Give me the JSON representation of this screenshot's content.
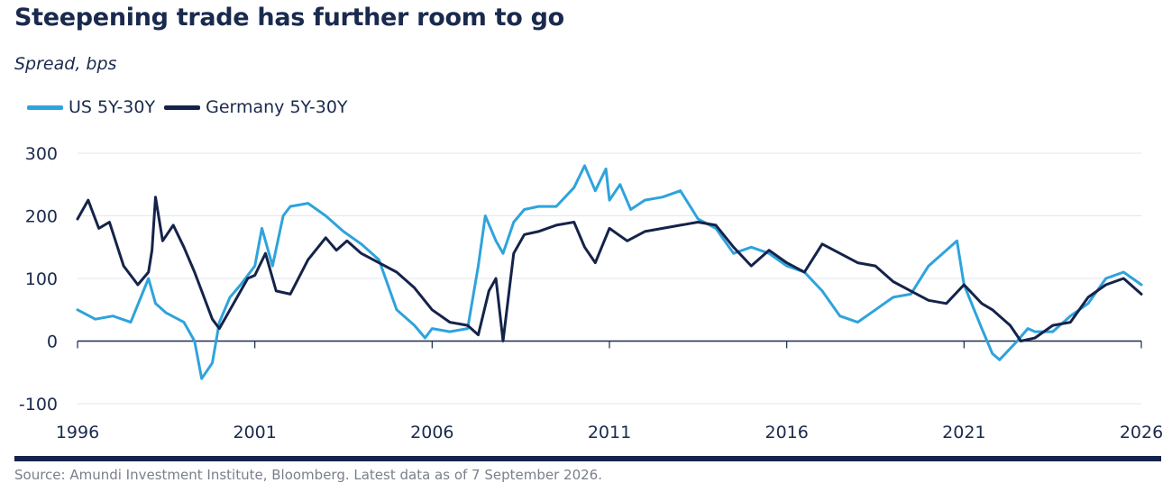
{
  "chart_data": {
    "type": "line",
    "title": "Steepening trade has further room to go",
    "subtitle": "Spread, bps",
    "xlabel": "",
    "ylabel": "",
    "xlim": [
      1996,
      2026
    ],
    "ylim": [
      -100,
      300
    ],
    "xticks": [
      1996,
      2001,
      2006,
      2011,
      2016,
      2021,
      2026
    ],
    "yticks": [
      -100,
      0,
      100,
      200,
      300
    ],
    "grid": "horizontal",
    "legend_position": "top-left",
    "series": [
      {
        "name": "US 5Y-30Y",
        "color": "#2ea3dc",
        "x": [
          1996.0,
          1996.5,
          1997.0,
          1997.5,
          1998.0,
          1998.2,
          1998.5,
          1999.0,
          1999.3,
          1999.5,
          1999.8,
          2000.0,
          2000.3,
          2000.6,
          2001.0,
          2001.2,
          2001.5,
          2001.8,
          2002.0,
          2002.5,
          2003.0,
          2003.5,
          2004.0,
          2004.5,
          2005.0,
          2005.5,
          2005.8,
          2006.0,
          2006.5,
          2007.0,
          2007.3,
          2007.5,
          2007.8,
          2008.0,
          2008.3,
          2008.6,
          2009.0,
          2009.5,
          2010.0,
          2010.3,
          2010.6,
          2010.9,
          2011.0,
          2011.3,
          2011.6,
          2012.0,
          2012.5,
          2013.0,
          2013.5,
          2014.0,
          2014.5,
          2015.0,
          2015.5,
          2016.0,
          2016.5,
          2017.0,
          2017.5,
          2018.0,
          2018.5,
          2019.0,
          2019.5,
          2020.0,
          2020.5,
          2020.8,
          2021.0,
          2021.5,
          2021.8,
          2022.0,
          2022.5,
          2022.8,
          2023.0,
          2023.5,
          2024.0,
          2024.5,
          2025.0,
          2025.5,
          2026.0
        ],
        "values": [
          50,
          35,
          40,
          30,
          100,
          60,
          45,
          30,
          0,
          -60,
          -35,
          30,
          70,
          90,
          120,
          180,
          120,
          200,
          215,
          220,
          200,
          175,
          155,
          130,
          50,
          25,
          5,
          20,
          15,
          20,
          120,
          200,
          160,
          140,
          190,
          210,
          215,
          215,
          245,
          280,
          240,
          275,
          225,
          250,
          210,
          225,
          230,
          240,
          195,
          180,
          140,
          150,
          140,
          120,
          110,
          80,
          40,
          30,
          50,
          70,
          75,
          120,
          145,
          160,
          90,
          20,
          -20,
          -30,
          0,
          20,
          15,
          15,
          40,
          60,
          100,
          110,
          90
        ]
      },
      {
        "name": "Germany 5Y-30Y",
        "color": "#15234a",
        "x": [
          1996.0,
          1996.3,
          1996.6,
          1996.9,
          1997.3,
          1997.7,
          1998.0,
          1998.1,
          1998.2,
          1998.4,
          1998.7,
          1999.0,
          1999.3,
          1999.5,
          1999.8,
          2000.0,
          2000.5,
          2000.8,
          2001.0,
          2001.3,
          2001.6,
          2002.0,
          2002.5,
          2003.0,
          2003.3,
          2003.6,
          2004.0,
          2004.5,
          2005.0,
          2005.5,
          2006.0,
          2006.5,
          2007.0,
          2007.3,
          2007.6,
          2007.8,
          2008.0,
          2008.3,
          2008.6,
          2009.0,
          2009.5,
          2010.0,
          2010.3,
          2010.6,
          2011.0,
          2011.5,
          2012.0,
          2012.5,
          2013.0,
          2013.5,
          2014.0,
          2014.5,
          2015.0,
          2015.5,
          2016.0,
          2016.5,
          2017.0,
          2017.5,
          2018.0,
          2018.5,
          2019.0,
          2019.5,
          2020.0,
          2020.5,
          2021.0,
          2021.5,
          2021.8,
          2022.0,
          2022.3,
          2022.6,
          2023.0,
          2023.5,
          2024.0,
          2024.5,
          2025.0,
          2025.5,
          2026.0
        ],
        "values": [
          195,
          225,
          180,
          190,
          120,
          90,
          110,
          145,
          230,
          160,
          185,
          150,
          110,
          80,
          35,
          20,
          70,
          100,
          105,
          140,
          80,
          75,
          130,
          165,
          145,
          160,
          140,
          125,
          110,
          85,
          50,
          30,
          25,
          10,
          80,
          100,
          0,
          140,
          170,
          175,
          185,
          190,
          150,
          125,
          180,
          160,
          175,
          180,
          185,
          190,
          185,
          150,
          120,
          145,
          125,
          110,
          155,
          140,
          125,
          120,
          95,
          80,
          65,
          60,
          90,
          60,
          50,
          40,
          25,
          0,
          5,
          25,
          30,
          70,
          90,
          100,
          75
        ]
      }
    ]
  },
  "source_text": "Source: Amundi Investment Institute, Bloomberg. Latest data as of 7 September 2026."
}
